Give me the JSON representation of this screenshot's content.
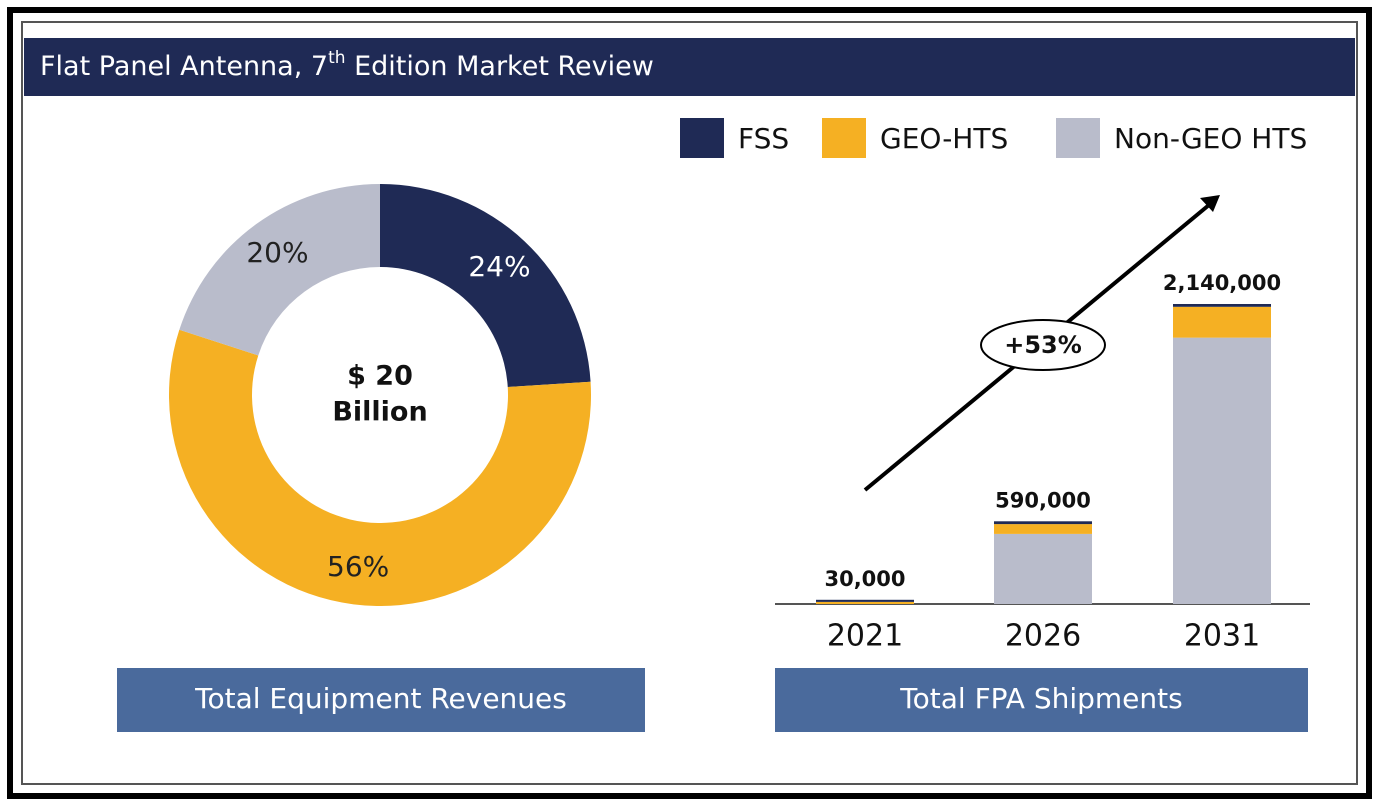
{
  "header": {
    "title_parts": [
      "Flat Panel Antenna, 7",
      "th",
      " Edition Market Review"
    ]
  },
  "chart_data": [
    {
      "type": "donut",
      "values": [
        24,
        56,
        20
      ],
      "value_labels": [
        "24%",
        "56%",
        "20%"
      ],
      "colors": [
        "#1f2a55",
        "#f5b023",
        "#b9bccb"
      ],
      "label_colors": [
        "#ffffff",
        "#222222",
        "#222222"
      ],
      "center_label": [
        "$ 20",
        "Billion"
      ],
      "caption": "Total Equipment Revenues"
    },
    {
      "type": "stacked_bar",
      "categories": [
        "2021",
        "2026",
        "2031"
      ],
      "series": [
        {
          "name": "FSS",
          "color": "#1f2a55",
          "values": [
            15000,
            20000,
            20000
          ]
        },
        {
          "name": "GEO-HTS",
          "color": "#f5b023",
          "values": [
            15000,
            70000,
            220000
          ]
        },
        {
          "name": "Non-GEO HTS",
          "color": "#b9bccb",
          "values": [
            0,
            500000,
            1900000
          ]
        }
      ],
      "totals": [
        30000,
        590000,
        2140000
      ],
      "total_labels": [
        "30,000",
        "590,000",
        "2,140,000"
      ],
      "annotation": "+53%",
      "legend": "top-right",
      "caption": "Total FPA Shipments"
    }
  ]
}
